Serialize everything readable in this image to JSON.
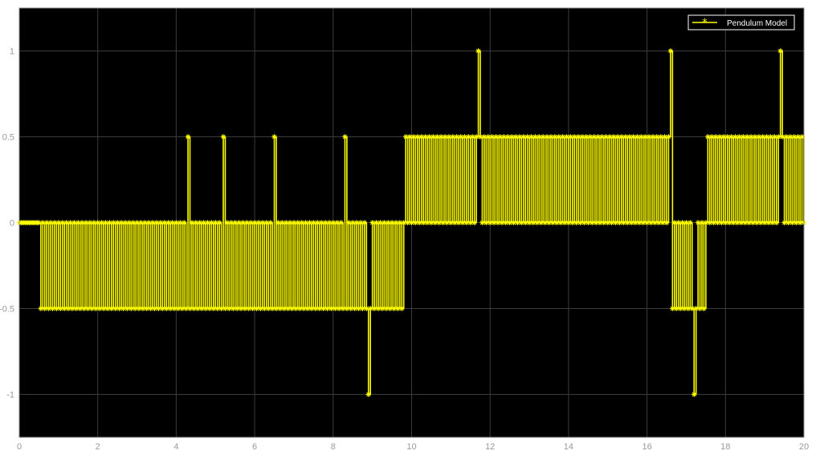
{
  "chart_data": {
    "type": "line",
    "title": "",
    "xlabel": "",
    "ylabel": "",
    "xlim": [
      0,
      20
    ],
    "ylim": [
      -1.25,
      1.25
    ],
    "xticks": [
      0,
      2,
      4,
      6,
      8,
      10,
      12,
      14,
      16,
      18,
      20
    ],
    "yticks": [
      -1,
      -0.5,
      0,
      0.5,
      1
    ],
    "xtick_labels": [
      "0",
      "2",
      "4",
      "6",
      "8",
      "10",
      "12",
      "14",
      "16",
      "18",
      "20"
    ],
    "ytick_labels": [
      "-1",
      "-0.5",
      "0",
      "0.5",
      "1"
    ],
    "grid": true,
    "background": "#000000",
    "line_color": "#ffff00",
    "marker": "asterisk",
    "step_dt": 0.05,
    "legend": {
      "placement": "top-right",
      "entries": [
        "Pendulum Model"
      ]
    },
    "series": [
      {
        "name": "Pendulum Model",
        "style": "alternating pulses sampled every 0.05 s, toggling between 0 and the segment level",
        "segments": [
          {
            "x_start": 0.0,
            "x_end": 0.55,
            "level": 0
          },
          {
            "x_start": 0.55,
            "x_end": 9.85,
            "level": -0.5
          },
          {
            "x_start": 9.85,
            "x_end": 16.65,
            "level": 0.5
          },
          {
            "x_start": 16.65,
            "x_end": 17.55,
            "level": -0.5
          },
          {
            "x_start": 17.55,
            "x_end": 20.0,
            "level": 0.5
          }
        ],
        "spikes": [
          {
            "x": 4.3,
            "y": 0.5
          },
          {
            "x": 5.2,
            "y": 0.5
          },
          {
            "x": 6.5,
            "y": 0.5
          },
          {
            "x": 8.3,
            "y": 0.5
          },
          {
            "x": 8.9,
            "y": -1
          },
          {
            "x": 11.7,
            "y": 1
          },
          {
            "x": 16.6,
            "y": 1
          },
          {
            "x": 17.2,
            "y": -1
          },
          {
            "x": 19.4,
            "y": 1
          }
        ]
      }
    ]
  }
}
